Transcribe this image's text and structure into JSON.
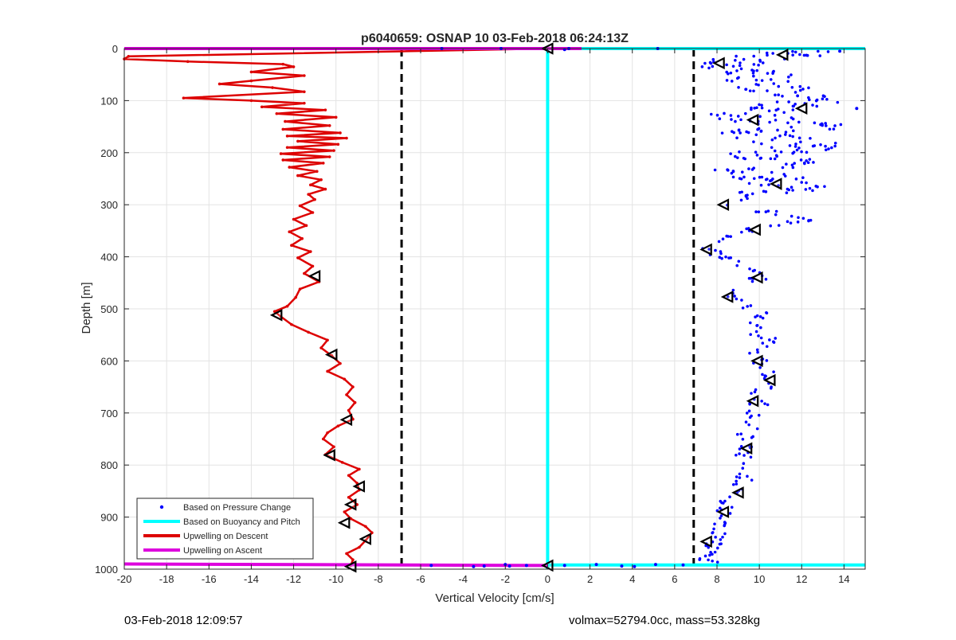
{
  "footer": {
    "timestamp": "03-Feb-2018 12:09:57",
    "params": "volmax=52794.0cc, mass=53.328kg"
  },
  "chart_data": {
    "type": "scatter",
    "title": "p6040659: OSNAP 10 03-Feb-2018 06:24:13Z",
    "xlabel": "Vertical Velocity [cm/s]",
    "ylabel": "Depth [m]",
    "xlim": [
      -20,
      15
    ],
    "ylim": [
      0,
      1000
    ],
    "y_reversed": true,
    "grid": true,
    "xticks": [
      -20,
      -18,
      -16,
      -14,
      -12,
      -10,
      -8,
      -6,
      -4,
      -2,
      0,
      2,
      4,
      6,
      8,
      10,
      12,
      14
    ],
    "yticks": [
      0,
      100,
      200,
      300,
      400,
      500,
      600,
      700,
      800,
      900,
      1000
    ],
    "legend_position": "bottom-left",
    "legend": [
      {
        "label": "Based on Pressure Change",
        "style": "dot",
        "color": "#0000ff"
      },
      {
        "label": "Based on Buoyancy and Pitch",
        "style": "line",
        "color": "#00ffff"
      },
      {
        "label": "Upwelling on Descent",
        "style": "line",
        "color": "#dd0000"
      },
      {
        "label": "Upwelling on Ascent",
        "style": "line",
        "color": "#dd00dd"
      }
    ],
    "thresholds": [
      -6.9,
      6.9
    ],
    "series": [
      {
        "name": "Upwelling on Descent",
        "color": "#dd0000",
        "points": [
          [
            0,
            0
          ],
          [
            -19.8,
            15
          ],
          [
            -20,
            20
          ],
          [
            -17,
            25
          ],
          [
            -12.5,
            30
          ],
          [
            -12,
            35
          ],
          [
            -14,
            45
          ],
          [
            -11.5,
            52
          ],
          [
            -14,
            62
          ],
          [
            -15.5,
            68
          ],
          [
            -13,
            75
          ],
          [
            -11.5,
            83
          ],
          [
            -17.2,
            95
          ],
          [
            -14,
            100
          ],
          [
            -11.5,
            105
          ],
          [
            -13.5,
            112
          ],
          [
            -10.5,
            118
          ],
          [
            -12.8,
            125
          ],
          [
            -10,
            132
          ],
          [
            -12.4,
            140
          ],
          [
            -10.3,
            148
          ],
          [
            -12.5,
            155
          ],
          [
            -9.8,
            162
          ],
          [
            -12.3,
            168
          ],
          [
            -9.5,
            172
          ],
          [
            -11.8,
            178
          ],
          [
            -9.9,
            184
          ],
          [
            -12.3,
            190
          ],
          [
            -10.1,
            196
          ],
          [
            -12.6,
            202
          ],
          [
            -10.3,
            208
          ],
          [
            -12.5,
            214
          ],
          [
            -10.6,
            220
          ],
          [
            -12.2,
            228
          ],
          [
            -10.9,
            236
          ],
          [
            -11.8,
            244
          ],
          [
            -10.7,
            252
          ],
          [
            -11.2,
            262
          ],
          [
            -10.5,
            270
          ],
          [
            -11.3,
            280
          ],
          [
            -11,
            290
          ],
          [
            -11.7,
            302
          ],
          [
            -11.1,
            315
          ],
          [
            -12,
            328
          ],
          [
            -11.4,
            340
          ],
          [
            -12.2,
            352
          ],
          [
            -11.6,
            365
          ],
          [
            -12.1,
            378
          ],
          [
            -11.2,
            390
          ],
          [
            -11.8,
            402
          ],
          [
            -11.1,
            418
          ],
          [
            -11.5,
            432
          ],
          [
            -10.8,
            448
          ],
          [
            -11.7,
            462
          ],
          [
            -11.9,
            478
          ],
          [
            -12.3,
            495
          ],
          [
            -12.9,
            505
          ],
          [
            -12.6,
            515
          ],
          [
            -12.1,
            530
          ],
          [
            -11.3,
            545
          ],
          [
            -10.4,
            560
          ],
          [
            -10.7,
            575
          ],
          [
            -10.2,
            590
          ],
          [
            -9.8,
            605
          ],
          [
            -10.4,
            620
          ],
          [
            -9.6,
            635
          ],
          [
            -9.2,
            650
          ],
          [
            -9.5,
            665
          ],
          [
            -9.1,
            680
          ],
          [
            -9.4,
            695
          ],
          [
            -9.2,
            712
          ],
          [
            -9.9,
            725
          ],
          [
            -10.4,
            738
          ],
          [
            -10.6,
            750
          ],
          [
            -10.1,
            765
          ],
          [
            -10.5,
            780
          ],
          [
            -9.7,
            795
          ],
          [
            -8.9,
            808
          ],
          [
            -9.4,
            820
          ],
          [
            -9.0,
            835
          ],
          [
            -8.9,
            848
          ],
          [
            -9.4,
            862
          ],
          [
            -9.0,
            876
          ],
          [
            -9.6,
            890
          ],
          [
            -9.3,
            903
          ],
          [
            -8.6,
            918
          ],
          [
            -8.3,
            930
          ],
          [
            -8.6,
            945
          ],
          [
            -8.9,
            958
          ],
          [
            -9.5,
            970
          ],
          [
            -9.2,
            982
          ],
          [
            -9.3,
            993
          ]
        ]
      },
      {
        "name": "Upwelling on Ascent",
        "color": "#dd00dd",
        "points": [
          [
            -20,
            0
          ],
          [
            0,
            0
          ],
          [
            1.6,
            0
          ]
        ]
      },
      {
        "name": "Upwelling on Ascent (bottom)",
        "color": "#dd00dd",
        "points": [
          [
            -20,
            990
          ],
          [
            0,
            993
          ]
        ]
      },
      {
        "name": "Based on Buoyancy and Pitch",
        "color": "#00ffff",
        "points": [
          [
            0,
            0
          ],
          [
            0,
            1000
          ]
        ]
      },
      {
        "name": "Based on Buoyancy and Pitch (top)",
        "color": "#00ffff",
        "points": [
          [
            0,
            0
          ],
          [
            15,
            0
          ]
        ]
      },
      {
        "name": "Based on Buoyancy and Pitch (bottom)",
        "color": "#00ffff",
        "points": [
          [
            0,
            992
          ],
          [
            15,
            992
          ]
        ]
      }
    ],
    "pressure_change_path": [
      [
        12.5,
        5
      ],
      [
        10.8,
        15
      ],
      [
        8.2,
        30
      ],
      [
        9.5,
        45
      ],
      [
        10.2,
        60
      ],
      [
        11,
        80
      ],
      [
        12.8,
        95
      ],
      [
        11.5,
        110
      ],
      [
        9,
        125
      ],
      [
        10.5,
        140
      ],
      [
        13,
        150
      ],
      [
        9.3,
        160
      ],
      [
        11,
        175
      ],
      [
        12.5,
        190
      ],
      [
        9.8,
        205
      ],
      [
        12,
        220
      ],
      [
        9,
        235
      ],
      [
        10.5,
        250
      ],
      [
        11.8,
        265
      ],
      [
        9.5,
        280
      ],
      [
        8.2,
        300
      ],
      [
        10.5,
        315
      ],
      [
        12.2,
        330
      ],
      [
        10,
        345
      ],
      [
        8.8,
        360
      ],
      [
        7.6,
        385
      ],
      [
        8.3,
        400
      ],
      [
        9.2,
        420
      ],
      [
        10,
        440
      ],
      [
        8.5,
        470
      ],
      [
        9.5,
        495
      ],
      [
        10.2,
        515
      ],
      [
        9.6,
        540
      ],
      [
        10.5,
        560
      ],
      [
        9.8,
        585
      ],
      [
        10.2,
        610
      ],
      [
        10.8,
        640
      ],
      [
        9.8,
        665
      ],
      [
        10,
        690
      ],
      [
        9.6,
        720
      ],
      [
        9.3,
        750
      ],
      [
        9.2,
        775
      ],
      [
        9.5,
        800
      ],
      [
        9.3,
        830
      ],
      [
        8.8,
        855
      ],
      [
        8.4,
        880
      ],
      [
        8.3,
        905
      ],
      [
        8.1,
        930
      ],
      [
        7.9,
        945
      ],
      [
        7.6,
        960
      ],
      [
        7.5,
        975
      ],
      [
        7.7,
        990
      ]
    ],
    "pressure_change_surface_points": [
      [
        -5,
        0
      ],
      [
        -2.2,
        0
      ],
      [
        1,
        0
      ],
      [
        0.8,
        2
      ],
      [
        5.2,
        0
      ],
      [
        13.8,
        5
      ],
      [
        14.6,
        115
      ]
    ],
    "pressure_change_bottom_points": [
      [
        -5.5,
        993
      ],
      [
        -3.5,
        995
      ],
      [
        -3,
        994
      ],
      [
        -2,
        991
      ],
      [
        -1.8,
        994
      ],
      [
        -1,
        993
      ],
      [
        0.8,
        993
      ],
      [
        2.3,
        991
      ],
      [
        3.5,
        994
      ],
      [
        4.1,
        995
      ],
      [
        5.1,
        991
      ],
      [
        6.4,
        992
      ]
    ],
    "direction_markers_ascent": [
      [
        0,
        0
      ],
      [
        11.1,
        12
      ],
      [
        8.1,
        28
      ],
      [
        12,
        115
      ],
      [
        9.7,
        137
      ],
      [
        10.8,
        260
      ],
      [
        8.3,
        300
      ],
      [
        9.8,
        348
      ],
      [
        7.5,
        386
      ],
      [
        9.9,
        440
      ],
      [
        8.5,
        477
      ],
      [
        9.9,
        600
      ],
      [
        10.5,
        637
      ],
      [
        9.7,
        677
      ],
      [
        9.4,
        768
      ],
      [
        9,
        853
      ],
      [
        8.3,
        890
      ],
      [
        7.5,
        947
      ],
      [
        0,
        993
      ]
    ],
    "direction_markers_descent": [
      [
        -11,
        437
      ],
      [
        -12.8,
        512
      ],
      [
        -10.2,
        588
      ],
      [
        -9.5,
        713
      ],
      [
        -10.3,
        781
      ],
      [
        -8.9,
        841
      ],
      [
        -9.3,
        876
      ],
      [
        -9.6,
        911
      ],
      [
        -8.6,
        942
      ],
      [
        -9.3,
        995
      ]
    ]
  }
}
